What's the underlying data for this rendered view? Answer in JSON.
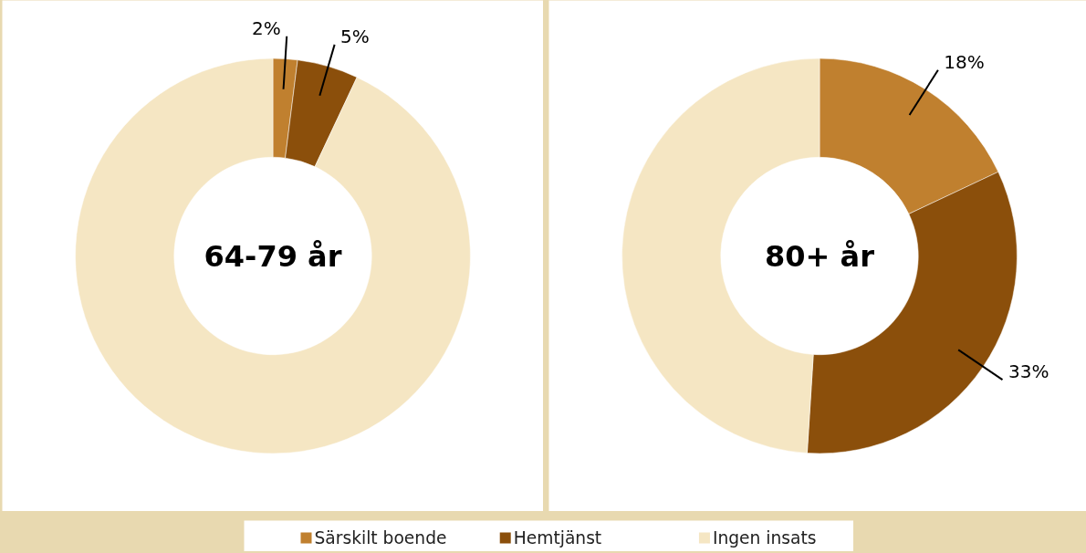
{
  "chart_data": [
    {
      "type": "donut",
      "title": "64-79 år",
      "categories": [
        "Särskilt boende",
        "Hemtjänst",
        "Ingen insats"
      ],
      "values": [
        2,
        5,
        93
      ],
      "colors": [
        "#c0802f",
        "#8b4f0b",
        "#f5e6c3"
      ],
      "value_labels": [
        "2%",
        "5%",
        null
      ],
      "legend": "bottom"
    },
    {
      "type": "donut",
      "title": "80+ år",
      "values": [
        18,
        33,
        49
      ],
      "colors": [
        "#c0802f",
        "#8b4f0b",
        "#f5e6c3"
      ],
      "value_labels": [
        "18%",
        "33%",
        null
      ]
    }
  ]
}
